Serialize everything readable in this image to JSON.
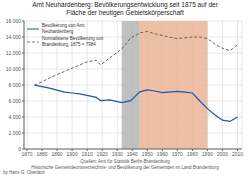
{
  "chart_data": {
    "type": "line",
    "title": "Amt Neuhardenberg: Bevölkerungsentwicklung seit 1875 auf der\nFläche der heutigen Gebietskörperschaft",
    "x": [
      1875,
      1880,
      1885,
      1890,
      1895,
      1900,
      1905,
      1910,
      1916,
      1919,
      1925,
      1933,
      1939,
      1945,
      1950,
      1955,
      1960,
      1964,
      1970,
      1975,
      1980,
      1985,
      1990,
      1995,
      2000,
      2005,
      2010
    ],
    "series": [
      {
        "name": "Bevölkerung von Amt\nNeuhardenberg",
        "color": "#2255aa",
        "line_style": "solid",
        "values": [
          7984,
          7800,
          7600,
          7350,
          7100,
          7000,
          6900,
          6700,
          6450,
          6050,
          6150,
          5800,
          6050,
          7150,
          7400,
          7250,
          7050,
          7100,
          7200,
          7100,
          7000,
          6000,
          5050,
          4250,
          3600,
          3450,
          4000
        ]
      },
      {
        "name": "Normalisierte Bevölkerung von\nBrandenburg, 1875 = 7984",
        "color": "#555555",
        "line_style": "dashed",
        "values": [
          7984,
          8400,
          8900,
          9300,
          9700,
          10100,
          10500,
          10900,
          11100,
          10500,
          11400,
          12500,
          13900,
          14500,
          14700,
          14400,
          14200,
          14000,
          13800,
          13900,
          14000,
          14000,
          13800,
          13100,
          12600,
          12300,
          13000
        ]
      }
    ],
    "shaded_regions": [
      {
        "start": 1933,
        "end": 1945,
        "color": "#b0b0b0"
      },
      {
        "start": 1945,
        "end": 1990,
        "color": "#e8b090"
      }
    ],
    "xlim": [
      1868,
      2013
    ],
    "xticks": [
      1870,
      1880,
      1890,
      1900,
      1910,
      1920,
      1930,
      1940,
      1950,
      1960,
      1970,
      1980,
      1990,
      2000,
      2010
    ],
    "ylim": [
      0,
      16000
    ],
    "yticks": [
      0,
      {
        "value": 2000,
        "label": "2.000"
      },
      {
        "value": 4000,
        "label": "4.000"
      },
      {
        "value": 6000,
        "label": "6.000"
      },
      {
        "value": 8000,
        "label": "8.000"
      },
      {
        "value": 10000,
        "label": "10.000"
      },
      {
        "value": 12000,
        "label": "12.000"
      },
      {
        "value": 14000,
        "label": "14.000"
      },
      {
        "value": 16000,
        "label": "16.000"
      }
    ],
    "grid": true,
    "legend": "upper left",
    "source": [
      "Quellen: Amt für Statistik Berlin-Brandenburg",
      "Historische Gemeindeortsverzeichnis- und Bevölkerung der Gemeinden im Land Brandenburg"
    ],
    "author": "by Hans G. Oberlack"
  }
}
